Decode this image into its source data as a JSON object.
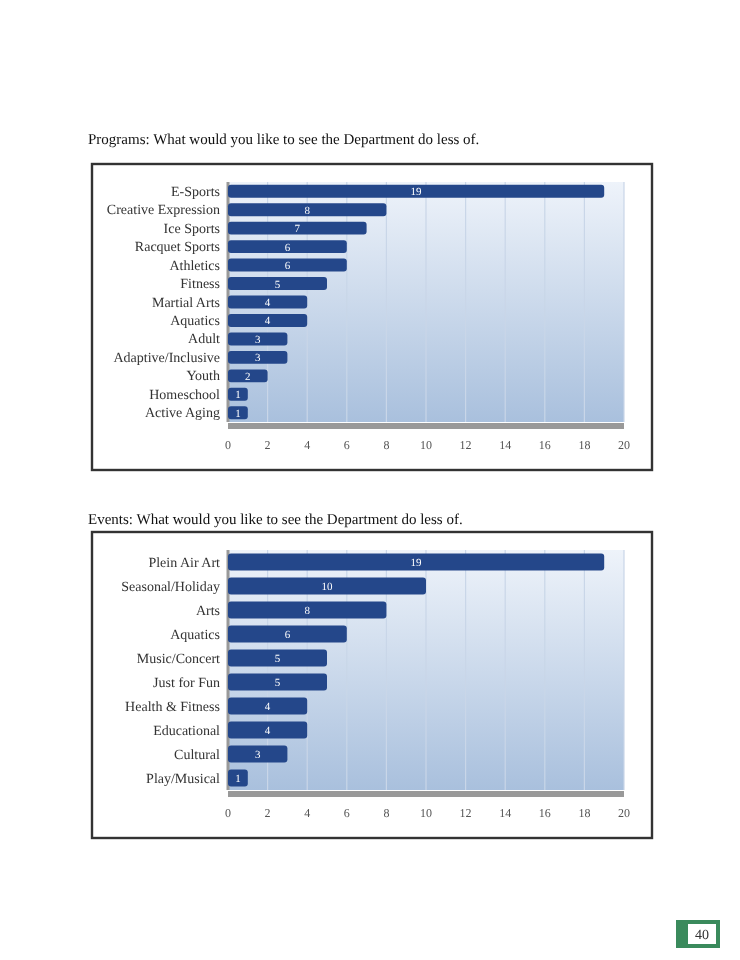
{
  "chart_data": [
    {
      "type": "bar",
      "orientation": "horizontal",
      "title": "Programs: What would you like to see the Department do less of.",
      "categories": [
        "E-Sports",
        "Creative Expression",
        "Ice Sports",
        "Racquet Sports",
        "Athletics",
        "Fitness",
        "Martial Arts",
        "Aquatics",
        "Adult",
        "Adaptive/Inclusive",
        "Youth",
        "Homeschool",
        "Active Aging"
      ],
      "values": [
        19,
        8,
        7,
        6,
        6,
        5,
        4,
        4,
        3,
        3,
        2,
        1,
        1
      ],
      "color": "#24478a",
      "xlim": [
        0,
        20
      ],
      "xticks": [
        0,
        2,
        4,
        6,
        8,
        10,
        12,
        14,
        16,
        18,
        20
      ],
      "grid": "x",
      "data_labels": true
    },
    {
      "type": "bar",
      "orientation": "horizontal",
      "title": "Events: What would you like to see the Department do less of.",
      "categories": [
        "Plein Air Art",
        "Seasonal/Holiday",
        "Arts",
        "Aquatics",
        "Music/Concert",
        "Just for Fun",
        "Health & Fitness",
        "Educational",
        "Cultural",
        "Play/Musical"
      ],
      "values": [
        19,
        10,
        8,
        6,
        5,
        5,
        4,
        4,
        3,
        1
      ],
      "color": "#24478a",
      "xlim": [
        0,
        20
      ],
      "xticks": [
        0,
        2,
        4,
        6,
        8,
        10,
        12,
        14,
        16,
        18,
        20
      ],
      "grid": "x",
      "data_labels": true,
      "annotations": [
        "40"
      ]
    }
  ]
}
